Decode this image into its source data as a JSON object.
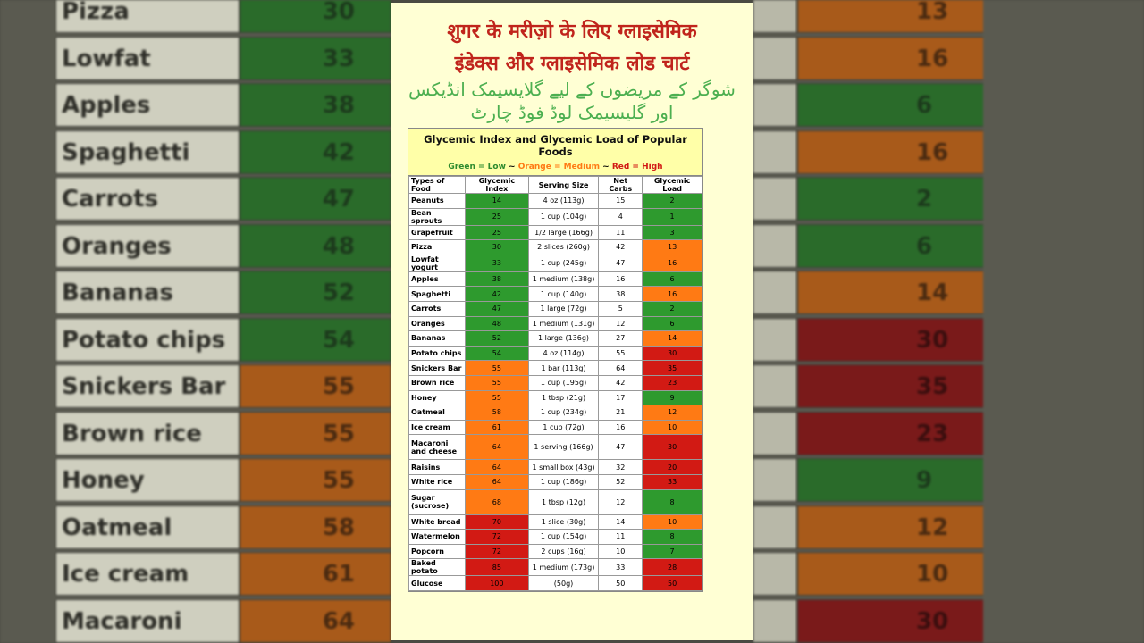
{
  "header": {
    "hindi_line1": "शुगर के मरीज़ो के लिए ग्लाइसेमिक",
    "hindi_line2": "इंडेक्स और ग्लाइसेमिक लोड चार्ट",
    "urdu_line1": "شوگر کے مریضوں کے لیے گلایسیمک انڈیکس",
    "urdu_line2": "اور گلیسیمک لوڈ فوڈ چارٹ"
  },
  "chart": {
    "title": "Glycemic Index and Glycemic Load of Popular Foods",
    "legend": {
      "green": "Green = Low",
      "sep1": " ~ ",
      "orange": "Orange = Medium",
      "sep2": " ~ ",
      "red": "Red = High"
    },
    "colors": {
      "low": "#2e9a2e",
      "medium": "#ff7a14",
      "high": "#d21a14"
    },
    "columns": [
      "Types of Food",
      "Glycemic Index",
      "Serving Size",
      "Net Carbs",
      "Glycemic Load"
    ]
  },
  "chart_data": {
    "type": "table",
    "title": "Glycemic Index and Glycemic Load of Popular Foods",
    "columns": [
      "Types of Food",
      "Glycemic Index",
      "Serving Size",
      "Net Carbs",
      "Glycemic Load"
    ],
    "rows": [
      {
        "food": "Peanuts",
        "gi": "14",
        "gi_level": "g",
        "serving": "4 oz (113g)",
        "carbs": "15",
        "gl": "2",
        "gl_level": "g"
      },
      {
        "food": "Bean sprouts",
        "gi": "25",
        "gi_level": "g",
        "serving": "1 cup (104g)",
        "carbs": "4",
        "gl": "1",
        "gl_level": "g"
      },
      {
        "food": "Grapefruit",
        "gi": "25",
        "gi_level": "g",
        "serving": "1/2 large (166g)",
        "carbs": "11",
        "gl": "3",
        "gl_level": "g"
      },
      {
        "food": "Pizza",
        "gi": "30",
        "gi_level": "g",
        "serving": "2 slices (260g)",
        "carbs": "42",
        "gl": "13",
        "gl_level": "o"
      },
      {
        "food": "Lowfat yogurt",
        "gi": "33",
        "gi_level": "g",
        "serving": "1 cup (245g)",
        "carbs": "47",
        "gl": "16",
        "gl_level": "o"
      },
      {
        "food": "Apples",
        "gi": "38",
        "gi_level": "g",
        "serving": "1 medium (138g)",
        "carbs": "16",
        "gl": "6",
        "gl_level": "g"
      },
      {
        "food": "Spaghetti",
        "gi": "42",
        "gi_level": "g",
        "serving": "1 cup (140g)",
        "carbs": "38",
        "gl": "16",
        "gl_level": "o"
      },
      {
        "food": "Carrots",
        "gi": "47",
        "gi_level": "g",
        "serving": "1 large (72g)",
        "carbs": "5",
        "gl": "2",
        "gl_level": "g"
      },
      {
        "food": "Oranges",
        "gi": "48",
        "gi_level": "g",
        "serving": "1 medium (131g)",
        "carbs": "12",
        "gl": "6",
        "gl_level": "g"
      },
      {
        "food": "Bananas",
        "gi": "52",
        "gi_level": "g",
        "serving": "1 large (136g)",
        "carbs": "27",
        "gl": "14",
        "gl_level": "o"
      },
      {
        "food": "Potato chips",
        "gi": "54",
        "gi_level": "g",
        "serving": "4 oz (114g)",
        "carbs": "55",
        "gl": "30",
        "gl_level": "r"
      },
      {
        "food": "Snickers Bar",
        "gi": "55",
        "gi_level": "o",
        "serving": "1 bar (113g)",
        "carbs": "64",
        "gl": "35",
        "gl_level": "r"
      },
      {
        "food": "Brown rice",
        "gi": "55",
        "gi_level": "o",
        "serving": "1 cup (195g)",
        "carbs": "42",
        "gl": "23",
        "gl_level": "r"
      },
      {
        "food": "Honey",
        "gi": "55",
        "gi_level": "o",
        "serving": "1 tbsp (21g)",
        "carbs": "17",
        "gl": "9",
        "gl_level": "g"
      },
      {
        "food": "Oatmeal",
        "gi": "58",
        "gi_level": "o",
        "serving": "1 cup (234g)",
        "carbs": "21",
        "gl": "12",
        "gl_level": "o"
      },
      {
        "food": "Ice cream",
        "gi": "61",
        "gi_level": "o",
        "serving": "1 cup (72g)",
        "carbs": "16",
        "gl": "10",
        "gl_level": "o"
      },
      {
        "food": "Macaroni and cheese",
        "gi": "64",
        "gi_level": "o",
        "serving": "1 serving (166g)",
        "carbs": "47",
        "gl": "30",
        "gl_level": "r",
        "tall": true
      },
      {
        "food": "Raisins",
        "gi": "64",
        "gi_level": "o",
        "serving": "1 small box (43g)",
        "carbs": "32",
        "gl": "20",
        "gl_level": "r"
      },
      {
        "food": "White rice",
        "gi": "64",
        "gi_level": "o",
        "serving": "1 cup (186g)",
        "carbs": "52",
        "gl": "33",
        "gl_level": "r"
      },
      {
        "food": "Sugar (sucrose)",
        "gi": "68",
        "gi_level": "o",
        "serving": "1 tbsp (12g)",
        "carbs": "12",
        "gl": "8",
        "gl_level": "g",
        "tall": true
      },
      {
        "food": "White bread",
        "gi": "70",
        "gi_level": "r",
        "serving": "1 slice (30g)",
        "carbs": "14",
        "gl": "10",
        "gl_level": "o"
      },
      {
        "food": "Watermelon",
        "gi": "72",
        "gi_level": "r",
        "serving": "1 cup (154g)",
        "carbs": "11",
        "gl": "8",
        "gl_level": "g"
      },
      {
        "food": "Popcorn",
        "gi": "72",
        "gi_level": "r",
        "serving": "2 cups (16g)",
        "carbs": "10",
        "gl": "7",
        "gl_level": "g"
      },
      {
        "food": "Baked potato",
        "gi": "85",
        "gi_level": "r",
        "serving": "1 medium (173g)",
        "carbs": "33",
        "gl": "28",
        "gl_level": "r"
      },
      {
        "food": "Glucose",
        "gi": "100",
        "gi_level": "r",
        "serving": "(50g)",
        "carbs": "50",
        "gl": "50",
        "gl_level": "r"
      }
    ]
  },
  "background_left": [
    {
      "name": "Pizza",
      "gi": "30",
      "level": "g"
    },
    {
      "name": "Lowfat yogurt",
      "gi": "33",
      "level": "g"
    },
    {
      "name": "Apples",
      "gi": "38",
      "level": "g"
    },
    {
      "name": "Spaghetti",
      "gi": "42",
      "level": "g"
    },
    {
      "name": "Carrots",
      "gi": "47",
      "level": "g"
    },
    {
      "name": "Oranges",
      "gi": "48",
      "level": "g"
    },
    {
      "name": "Bananas",
      "gi": "52",
      "level": "g"
    },
    {
      "name": "Potato chips",
      "gi": "54",
      "level": "g"
    },
    {
      "name": "Snickers Bar",
      "gi": "55",
      "level": "o"
    },
    {
      "name": "Brown rice",
      "gi": "55",
      "level": "o"
    },
    {
      "name": "Honey",
      "gi": "55",
      "level": "o"
    },
    {
      "name": "Oatmeal",
      "gi": "58",
      "level": "o"
    },
    {
      "name": "Ice cream",
      "gi": "61",
      "level": "o"
    },
    {
      "name": "Macaroni and",
      "gi": "64",
      "level": "o"
    }
  ],
  "background_right": [
    {
      "gl": "13",
      "level": "o"
    },
    {
      "gl": "16",
      "level": "o"
    },
    {
      "gl": "6",
      "level": "g"
    },
    {
      "gl": "16",
      "level": "o"
    },
    {
      "gl": "2",
      "level": "g"
    },
    {
      "gl": "6",
      "level": "g"
    },
    {
      "gl": "14",
      "level": "o"
    },
    {
      "gl": "30",
      "level": "r"
    },
    {
      "gl": "35",
      "level": "r"
    },
    {
      "gl": "23",
      "level": "r"
    },
    {
      "gl": "9",
      "level": "g"
    },
    {
      "gl": "12",
      "level": "o"
    },
    {
      "gl": "10",
      "level": "o"
    },
    {
      "gl": "30",
      "level": "r"
    }
  ]
}
